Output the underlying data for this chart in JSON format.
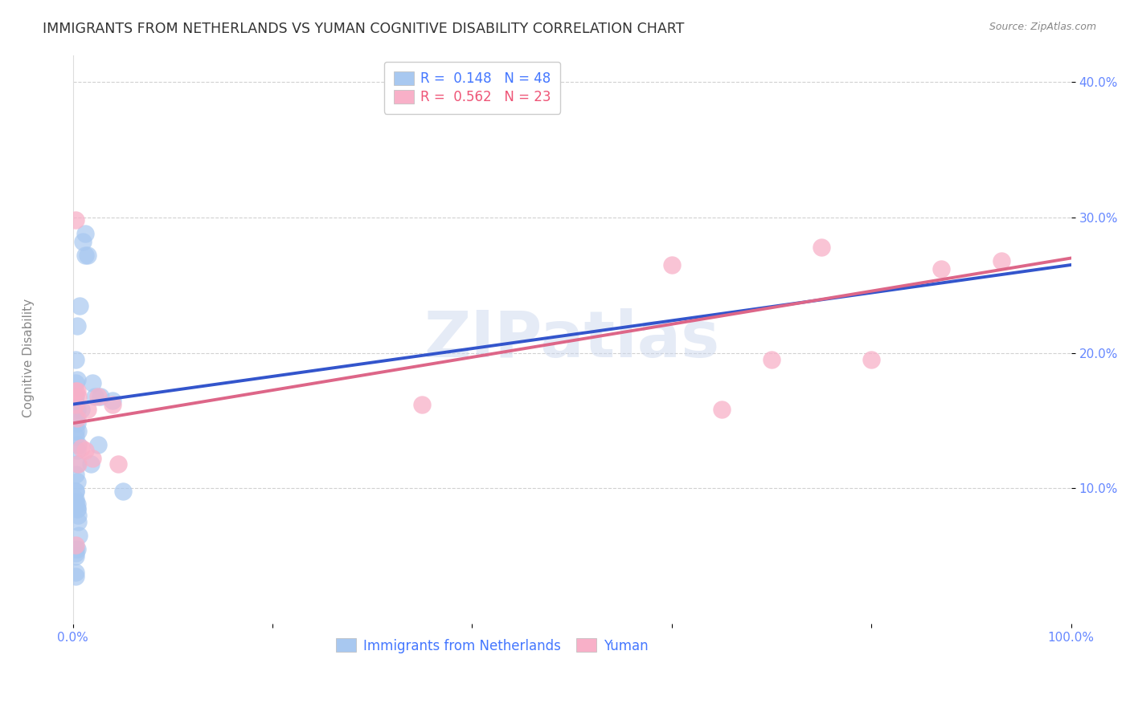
{
  "title": "IMMIGRANTS FROM NETHERLANDS VS YUMAN COGNITIVE DISABILITY CORRELATION CHART",
  "source": "Source: ZipAtlas.com",
  "ylabel": "Cognitive Disability",
  "xlim": [
    0.0,
    1.0
  ],
  "ylim": [
    0.0,
    0.42
  ],
  "xticks": [
    0.0,
    0.2,
    0.4,
    0.6,
    0.8,
    1.0
  ],
  "xtick_labels": [
    "0.0%",
    "",
    "",
    "",
    "",
    "100.0%"
  ],
  "yticks": [
    0.1,
    0.2,
    0.3,
    0.4
  ],
  "ytick_labels": [
    "10.0%",
    "20.0%",
    "30.0%",
    "40.0%"
  ],
  "legend_label_blue": "R =  0.148   N = 48",
  "legend_label_pink": "R =  0.562   N = 23",
  "legend_label_blue2": "Immigrants from Netherlands",
  "legend_label_pink2": "Yuman",
  "blue_scatter_x": [
    0.004,
    0.007,
    0.002,
    0.003,
    0.004,
    0.003,
    0.004,
    0.003,
    0.003,
    0.004,
    0.003,
    0.005,
    0.003,
    0.004,
    0.005,
    0.003,
    0.004,
    0.003,
    0.004,
    0.003,
    0.003,
    0.004,
    0.003,
    0.01,
    0.012,
    0.008,
    0.015,
    0.012,
    0.02,
    0.022,
    0.025,
    0.028,
    0.018,
    0.003,
    0.004,
    0.005,
    0.003,
    0.004,
    0.005,
    0.006,
    0.003,
    0.004,
    0.003,
    0.04,
    0.05,
    0.003,
    0.003,
    0.003
  ],
  "blue_scatter_y": [
    0.22,
    0.235,
    0.165,
    0.195,
    0.18,
    0.168,
    0.158,
    0.162,
    0.152,
    0.148,
    0.178,
    0.142,
    0.138,
    0.128,
    0.132,
    0.142,
    0.118,
    0.11,
    0.105,
    0.098,
    0.09,
    0.085,
    0.098,
    0.282,
    0.288,
    0.158,
    0.272,
    0.272,
    0.178,
    0.168,
    0.132,
    0.168,
    0.118,
    0.088,
    0.085,
    0.08,
    0.092,
    0.088,
    0.075,
    0.065,
    0.055,
    0.055,
    0.052,
    0.165,
    0.098,
    0.05,
    0.038,
    0.035
  ],
  "pink_scatter_x": [
    0.003,
    0.003,
    0.004,
    0.005,
    0.003,
    0.004,
    0.008,
    0.012,
    0.015,
    0.02,
    0.025,
    0.04,
    0.045,
    0.35,
    0.6,
    0.65,
    0.7,
    0.75,
    0.8,
    0.87,
    0.003,
    0.005,
    0.93
  ],
  "pink_scatter_y": [
    0.298,
    0.172,
    0.172,
    0.168,
    0.162,
    0.152,
    0.13,
    0.128,
    0.158,
    0.122,
    0.168,
    0.162,
    0.118,
    0.162,
    0.265,
    0.158,
    0.195,
    0.278,
    0.195,
    0.262,
    0.058,
    0.118,
    0.268
  ],
  "blue_line_x": [
    0.0,
    1.0
  ],
  "blue_line_y": [
    0.162,
    0.265
  ],
  "pink_line_x": [
    0.0,
    1.0
  ],
  "pink_line_y": [
    0.148,
    0.27
  ],
  "watermark": "ZIPatlas",
  "background_color": "#ffffff",
  "scatter_blue": "#a8c8f0",
  "scatter_pink": "#f8b0c8",
  "line_blue": "#3355cc",
  "line_pink": "#dd6688",
  "tick_color": "#6688ff",
  "ylabel_color": "#888888",
  "title_color": "#333333",
  "source_color": "#888888",
  "watermark_color": "#ccd8ee",
  "title_fontsize": 12.5,
  "axis_label_fontsize": 11,
  "tick_fontsize": 11,
  "legend_fontsize": 12
}
